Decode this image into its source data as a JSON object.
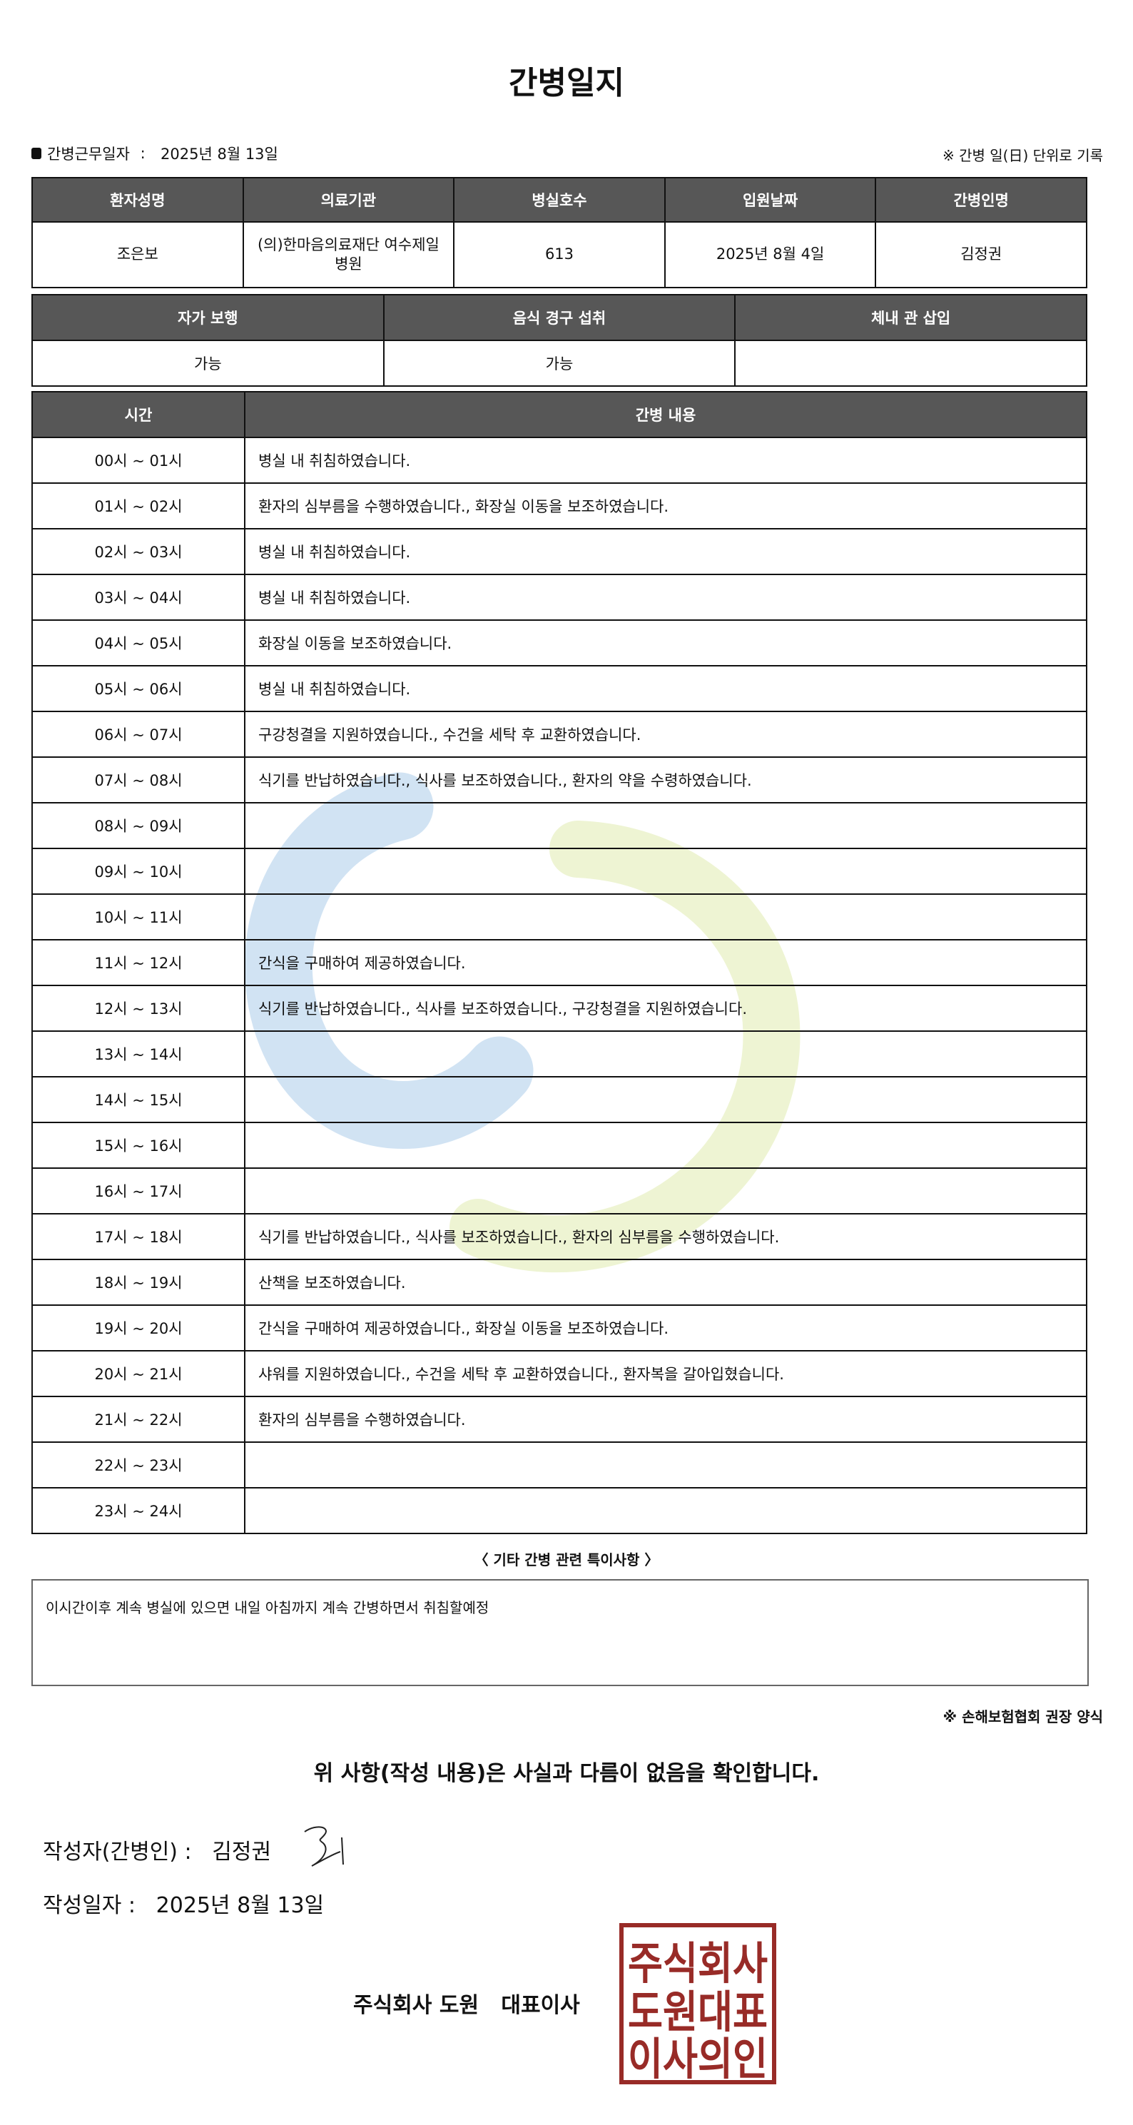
{
  "title": "간병일지",
  "work_date": {
    "label": "간병근무일자",
    "value": "2025년 8월 13일"
  },
  "unit_note": "※ 간병 일(日) 단위로 기록",
  "patient_table": {
    "headers": [
      "환자성명",
      "의료기관",
      "병실호수",
      "입원날짜",
      "간병인명"
    ],
    "values": [
      "조은보",
      "(의)한마음의료재단 여수제일병원",
      "613",
      "2025년 8월 4일",
      "김정권"
    ]
  },
  "status_table": {
    "headers": [
      "자가 보행",
      "음식 경구 섭취",
      "체내 관 삽입"
    ],
    "values": [
      "가능",
      "가능",
      ""
    ]
  },
  "care_log": {
    "headers": [
      "시간",
      "간병 내용"
    ],
    "rows": [
      {
        "time": "00시 ~ 01시",
        "content": "병실 내 취침하였습니다."
      },
      {
        "time": "01시 ~ 02시",
        "content": "환자의 심부름을 수행하였습니다., 화장실 이동을 보조하였습니다."
      },
      {
        "time": "02시 ~ 03시",
        "content": "병실 내 취침하였습니다."
      },
      {
        "time": "03시 ~ 04시",
        "content": "병실 내 취침하였습니다."
      },
      {
        "time": "04시 ~ 05시",
        "content": "화장실 이동을 보조하였습니다."
      },
      {
        "time": "05시 ~ 06시",
        "content": "병실 내 취침하였습니다."
      },
      {
        "time": "06시 ~ 07시",
        "content": "구강청결을 지원하였습니다., 수건을 세탁 후 교환하였습니다."
      },
      {
        "time": "07시 ~ 08시",
        "content": "식기를 반납하였습니다., 식사를 보조하였습니다., 환자의 약을 수령하였습니다."
      },
      {
        "time": "08시 ~ 09시",
        "content": ""
      },
      {
        "time": "09시 ~ 10시",
        "content": ""
      },
      {
        "time": "10시 ~ 11시",
        "content": ""
      },
      {
        "time": "11시 ~ 12시",
        "content": "간식을 구매하여 제공하였습니다."
      },
      {
        "time": "12시 ~ 13시",
        "content": "식기를 반납하였습니다., 식사를 보조하였습니다., 구강청결을 지원하였습니다."
      },
      {
        "time": "13시 ~ 14시",
        "content": ""
      },
      {
        "time": "14시 ~ 15시",
        "content": ""
      },
      {
        "time": "15시 ~ 16시",
        "content": ""
      },
      {
        "time": "16시 ~ 17시",
        "content": ""
      },
      {
        "time": "17시 ~ 18시",
        "content": "식기를 반납하였습니다., 식사를 보조하였습니다., 환자의 심부름을 수행하였습니다."
      },
      {
        "time": "18시 ~ 19시",
        "content": "산책을 보조하였습니다."
      },
      {
        "time": "19시 ~ 20시",
        "content": "간식을 구매하여 제공하였습니다., 화장실 이동을 보조하였습니다."
      },
      {
        "time": "20시 ~ 21시",
        "content": "샤워를 지원하였습니다., 수건을 세탁 후 교환하였습니다., 환자복을 갈아입혔습니다."
      },
      {
        "time": "21시 ~ 22시",
        "content": "환자의 심부름을 수행하였습니다."
      },
      {
        "time": "22시 ~ 23시",
        "content": ""
      },
      {
        "time": "23시 ~ 24시",
        "content": ""
      }
    ]
  },
  "special_notes": {
    "title": "〈 기타 간병 관련 특이사항 〉",
    "text": "이시간이후 계속 병실에 있으면 내일 아침까지 계속 간병하면서 취침할예정"
  },
  "association_note": "※ 손해보험협회 권장 양식",
  "confirmation": "위 사항(작성 내용)은 사실과 다름이 없음을 확인합니다.",
  "writer": {
    "label": "작성자(간병인) :",
    "name": "김정권"
  },
  "written_date": {
    "label": "작성일자 :",
    "value": "2025년 8월 13일"
  },
  "company": "주식회사 도원   대표이사",
  "seal_text": "주식회사도원대표이사의인",
  "colors": {
    "header_bg": "#575757",
    "seal": "#982b27"
  }
}
